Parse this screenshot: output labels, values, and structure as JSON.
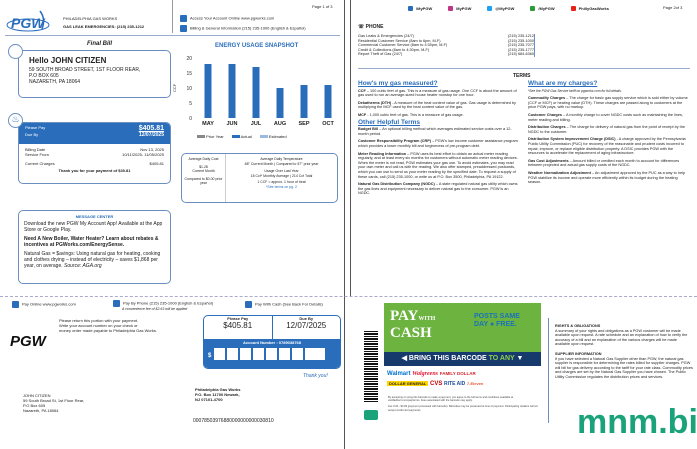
{
  "page1": {
    "page_num": "Page 1 of 3",
    "logo": "PGW",
    "company": "PHILADELPHIA GAS WORKS",
    "emergency": "GAS LEAK EMERGENCIES: (215) 235-1212",
    "access": "Access Your Account Online www.pgworks.com",
    "billing_info": "Billing & General Information (215) 235-1000 (English & Español)",
    "bill_type": "Final Bill",
    "greeting": "Hello JOHN CITIZEN",
    "address": [
      "59 SOUTH BROAD STREET, 1ST FLOOR REAR,",
      "P.O BOX 605",
      "NAZARETH, PA 18064"
    ],
    "please_pay_label": "Please Pay",
    "please_pay": "$405.81",
    "due_label": "Due By",
    "due": "12/07/2025",
    "billing_date_label": "Billing Date",
    "billing_date": "Nov 13, 2025",
    "service_label": "Service From",
    "service": "10/11/2025- 11/05/2025",
    "current_label": "Current Charges",
    "current": "$405.81",
    "thanks": "Thank you for your payment of $30.81",
    "message_center": {
      "title": "MESSAGE CENTER",
      "items": [
        "Download the new PGW My Account App! Available at the App Store or Google Play.",
        "Need A New Boiler, Water Heater? Learn about rebates & incentives at PGWorks.com/EnergySense.",
        "Natural Gas = $avings: Using natural gas for heating, cooking and clothes drying – instead of electricity – saves $1,868 per year, on average.",
        "Source: AGA.org"
      ]
    },
    "snapshot": {
      "avg_cost_label": "Average Daily Cost",
      "avg_cost": "$1.28",
      "avg_cost_sub": "Current Month",
      "compared": "Compared to $0.00 prior year",
      "temp_title": "Average Daily Temperature",
      "temp": "68° Current Month | Compared to 57° prior year",
      "usage_title": "Usage Over Last Year",
      "usage": "18 Ccf* Monthly Average | 214 Ccf Total",
      "ccf_note": "1 CCF = approx. 1 hour of heat",
      "terms_link": "*See terms on pg. 2"
    }
  },
  "chart_data": {
    "type": "bar",
    "title": "ENERGY USAGE SNAPSHOT",
    "ylabel": "CCF",
    "xlabel": "",
    "categories": [
      "MAY",
      "JUN",
      "JUL",
      "AUG",
      "SEP",
      "OCT"
    ],
    "series": [
      {
        "name": "Actual",
        "values": [
          18,
          18,
          17,
          10,
          11,
          11
        ]
      }
    ],
    "legend": [
      "Prior Year",
      "Actual",
      "Estimated"
    ],
    "ylim": [
      0,
      20
    ],
    "yticks": [
      0,
      5,
      10,
      15,
      20
    ],
    "colors": {
      "prior": "#888888",
      "actual": "#2a6ebb",
      "estimated": "#9bb8e0"
    }
  },
  "stub": {
    "pay_online": "Pay Online www.pgworks.com",
    "pay_phone": "Pay By Phone (215) 235-1000 (English & Español)",
    "pay_phone_note": "A convenience fee of $2.63 will be applied",
    "pay_cash": "Pay With Cash (See Back For Details)",
    "instructions": [
      "Please return this portion with your payment.",
      "Write your account number on your check or",
      "money order made payable to Philadelphia Gas Works."
    ],
    "please_pay_label": "Please Pay",
    "please_pay": "$405.81",
    "due_label": "Due By",
    "due": "12/07/2025",
    "account": "Account Number : 0789038768",
    "dollar": "$",
    "thank_you": "Thank you!",
    "customer": [
      "JOHN CITIZEN",
      "59 South Broad St, 1st Floor Rear,",
      "P.O Box 605",
      "Nazareth, PA 18064"
    ],
    "remit": [
      "Philadelphia Gas Works",
      "P.O. Box 11700 Newark,",
      "NJ 07101-4700"
    ],
    "scanline": "00078503976880000000000030810"
  },
  "page2": {
    "page_num": "Page 2of 3",
    "social": [
      "/MyPGW",
      "MyPGW",
      "@MyPGW",
      "/MyPGW",
      "PhillyGasWorks"
    ],
    "phone_title": "PHONE",
    "phones": [
      [
        "Gas Leaks & Emergencies (24/7)",
        "(215) 235-1212"
      ],
      [
        "Residential Customer Service (8am to 6pm, M-F)",
        "(215) 235-1000"
      ],
      [
        "Commercial Customer Service (8am to 4:30pm, M-F)",
        "(215) 235-7077"
      ],
      [
        "Credit & Collections (8am to 4:30pm, M-F)",
        "(215) 235-1777"
      ],
      [
        "Report Theft of Gas (24/7)",
        "(215) 684-6360"
      ]
    ],
    "terms_title": "TERMS",
    "left_h1": "How's my gas measured?",
    "left1": [
      [
        "CCF",
        "– 100 cubic feet of gas. This is a measure of gas usage. One CCF is about the amount of gas used to run an average-sized house heater nonstop for one hour."
      ],
      [
        "Dekatherms (DTH)",
        "- A measure of the heat content value of gas. Gas usage is determined by multiplying the MCF used by the heat content value of the gas."
      ],
      [
        "MCF",
        "- 1,000 cubic feet of gas. This is a measure of gas usage."
      ]
    ],
    "left_h2": "Other Helpful Terms",
    "left2": [
      [
        "Budget Bill",
        "– An optional billing method which averages estimated service costs over a 12-month period."
      ],
      [
        "Customer Responsibility Program (CRP)",
        "– PGW's low income customer assistance program which provides a lower monthly bill and forgiveness of pre-program debt."
      ],
      [
        "Meter Reading Information",
        "– PGW uses its best effort to obtain an actual meter reading regularly, and at least every six months for customers without automatic meter reading devices. When the meter is not read, PGW estimates your gas use. To avoid estimates, you may read your own meter and call us with the reading. We also offer stamped, preaddressed postcards, which you can use to send us your meter reading by the specified date. To request a supply of these cards, call (215) 235-1000, or write us at P.O. Box 3500, Philadelphia, PA 19122."
      ],
      [
        "Natural Gas Distribution Company (NGDC)",
        "– A state regulated natural gas utility which owns the gas lines and equipment necessary to deliver natural gas to the consumer. PGW is an NGDC."
      ]
    ],
    "right_h": "What are my charges?",
    "right_note": "*See the PGW Gas Service tariff on pgworks.com for full details.",
    "right": [
      [
        "Commodity Charges",
        "– The charge for basic gas supply service which is sold either by volume (CCF or MCF) or heating value (DTH). These charges are passed along to customers at the price PGW pays, with no markup."
      ],
      [
        "Customer Charges",
        "– A monthly charge to cover NGDC costs such as maintaining the lines, meter reading and billing."
      ],
      [
        "Distribution Charges",
        "– The charge for delivery of natural gas from the point of receipt by the NGDC to the customer."
      ],
      [
        "Distribution System Improvement Charge (DSIC)",
        "- A charge approved by the Pennsylvania Public Utility Commission (PUC) for recovery of the reasonable and prudent costs incurred to repair, improve, or replace eligible distribution property. A DSIC provides PGW with the resources to accelerate the replacement of aging infrastructure."
      ],
      [
        "Gas Cost Adjustments",
        "– Amount billed or credited each month to account for differences between projected and actual gas supply costs of the NGDC."
      ],
      [
        "Weather Normalization Adjustment",
        "– An adjustment approved by the PUC as a way to help PGW stabilize its income and operate more efficiently within its budget during the heating season."
      ]
    ],
    "coupon": {
      "pay": "PAY",
      "with": "WITH",
      "cash": "CASH",
      "posts": "POSTS SAME",
      "day": "DAY",
      "free": "FREE.",
      "bring": "BRING THIS BARCODE",
      "to_any": "TO ANY",
      "stores": [
        "Walmart",
        "Walgreens",
        "FAMILY DOLLAR",
        "DOLLAR GENERAL",
        "CVS",
        "RITE AID",
        "7-Eleven"
      ],
      "fine1": "By accepting or using this barcode to make a payment, you agree to the full terms and conditions available at vanilladirect.com/pay/terms. Fees associated with the barcode may apply.",
      "fine2": "Fee 0.00 - $3.99 (payment processed with barcode). Barcodes may be presented at time of payment. Participating retailers will not accept credit card payments."
    },
    "rights_title": "RIGHTS & OBLIGATIONS",
    "rights": "A summary of your rights and obligations as a PGW customer will be made available upon request. A rate schedule and an explanation of how to verify the accuracy of a bill and an explanation of the various charges will be made available upon request.",
    "supplier_title": "SUPPLIER INFORMATION",
    "supplier": "If you have selected a Natural Gas Supplier other than PGW, the natural gas supplier is responsible for determining the rates billed for supplier charges. PGW will bill for gas delivery according to the tariff for your rate class. Commodity prices and charges are set by the Natural Gas Supplier you have chosen. The Public Utility Commission regulates the distribution prices and services."
  },
  "watermark": "mnm.bio"
}
